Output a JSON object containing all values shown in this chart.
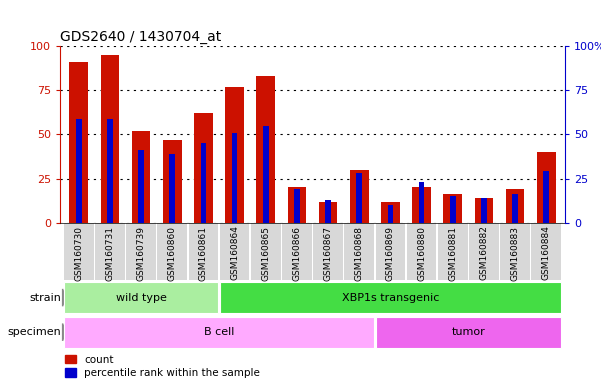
{
  "title": "GDS2640 / 1430704_at",
  "samples": [
    "GSM160730",
    "GSM160731",
    "GSM160739",
    "GSM160860",
    "GSM160861",
    "GSM160864",
    "GSM160865",
    "GSM160866",
    "GSM160867",
    "GSM160868",
    "GSM160869",
    "GSM160880",
    "GSM160881",
    "GSM160882",
    "GSM160883",
    "GSM160884"
  ],
  "count": [
    91,
    95,
    52,
    47,
    62,
    77,
    83,
    20,
    12,
    30,
    12,
    20,
    16,
    14,
    19,
    40
  ],
  "percentile": [
    59,
    59,
    41,
    39,
    45,
    51,
    55,
    19,
    13,
    28,
    10,
    23,
    15,
    14,
    16,
    29
  ],
  "strain_groups": [
    {
      "label": "wild type",
      "start": 0,
      "end": 4
    },
    {
      "label": "XBP1s transgenic",
      "start": 5,
      "end": 15
    }
  ],
  "specimen_groups": [
    {
      "label": "B cell",
      "start": 0,
      "end": 9
    },
    {
      "label": "tumor",
      "start": 10,
      "end": 15
    }
  ],
  "strain_colors": [
    "#aaeea0",
    "#44dd44"
  ],
  "specimen_colors": [
    "#ffaaff",
    "#ee66ee"
  ],
  "bar_color_count": "#cc1100",
  "bar_color_pct": "#0000cc",
  "ylim": [
    0,
    100
  ],
  "yticks": [
    0,
    25,
    50,
    75,
    100
  ],
  "legend_count": "count",
  "legend_pct": "percentile rank within the sample",
  "strain_label": "strain",
  "specimen_label": "specimen",
  "count_bar_width": 0.6,
  "pct_bar_width": 0.18,
  "bg_color": "#d8d8d8",
  "plot_bg": "#ffffff",
  "tick_label_fontsize": 6.5,
  "title_fontsize": 10
}
